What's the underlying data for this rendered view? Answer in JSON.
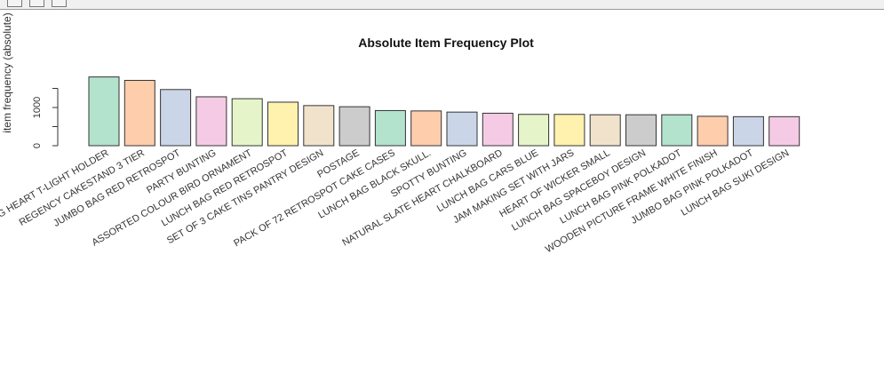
{
  "window": {
    "toolbar_buttons": [
      "toolbar-button-1",
      "toolbar-button-2",
      "toolbar-button-3"
    ]
  },
  "chart_data": {
    "type": "bar",
    "title": "Absolute Item Frequency Plot",
    "xlabel": "",
    "ylabel": "item frequency (absolute)",
    "ylim": [
      0,
      2000
    ],
    "yticks": [
      0,
      1000
    ],
    "grid": false,
    "legend": "none",
    "categories": [
      "WHITE HANGING HEART T-LIGHT HOLDER",
      "REGENCY CAKESTAND 3 TIER",
      "JUMBO BAG RED RETROSPOT",
      "PARTY BUNTING",
      "ASSORTED COLOUR BIRD ORNAMENT",
      "LUNCH BAG RED RETROSPOT",
      "SET OF 3 CAKE TINS PANTRY DESIGN",
      "POSTAGE",
      "PACK OF 72 RETROSPOT CAKE CASES",
      "LUNCH BAG BLACK SKULL.",
      "SPOTTY BUNTING",
      "NATURAL SLATE HEART CHALKBOARD",
      "LUNCH BAG CARS BLUE",
      "JAM MAKING SET WITH JARS",
      "HEART OF WICKER SMALL",
      "LUNCH BAG SPACEBOY DESIGN",
      "LUNCH BAG PINK POLKADOT",
      "WOODEN PICTURE FRAME WHITE FINISH",
      "JUMBO BAG PINK POLKADOT",
      "LUNCH BAG SUKI DESIGN"
    ],
    "values": [
      1800,
      1710,
      1470,
      1280,
      1230,
      1140,
      1050,
      1020,
      920,
      910,
      880,
      850,
      820,
      820,
      810,
      810,
      810,
      770,
      760,
      760
    ],
    "colors": [
      "#b3e2cd",
      "#fdcdac",
      "#cbd5e8",
      "#f4cae4",
      "#e6f5c9",
      "#fff2ae",
      "#f1e2cc",
      "#cccccc"
    ]
  }
}
